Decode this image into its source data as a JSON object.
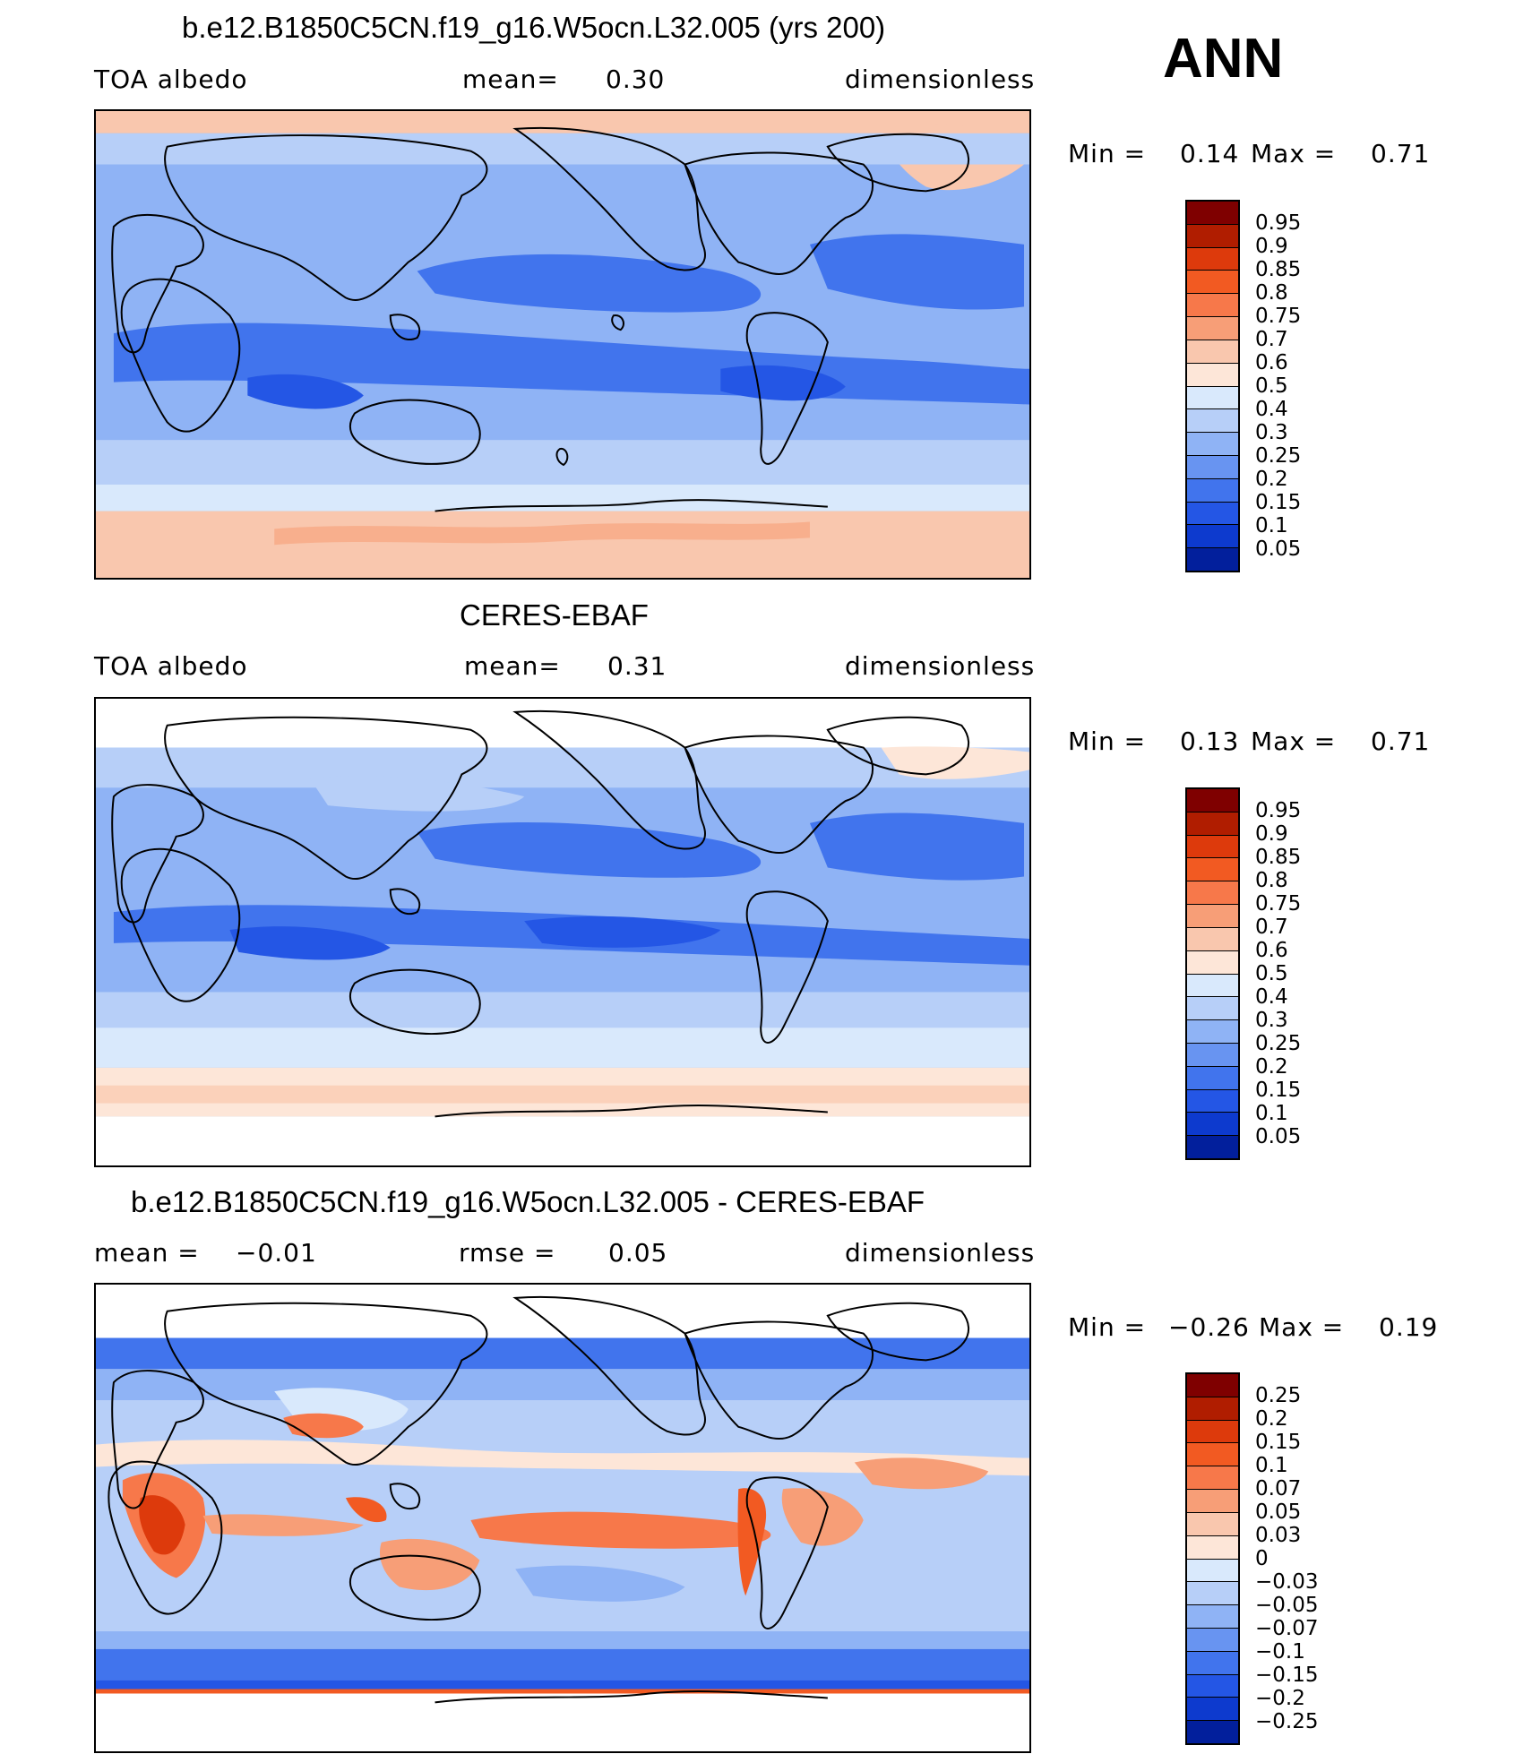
{
  "season": "ANN",
  "panels": [
    {
      "title": "b.e12.B1850C5CN.f19_g16.W5ocn.L32.005 (yrs 200)",
      "left_label": "TOA albedo",
      "center_label": "mean=",
      "center_value": "0.30",
      "right_label": "dimensionless",
      "min_label": "Min =",
      "min_value": "0.14",
      "max_label": "Max =",
      "max_value": "0.71",
      "levels": [
        "0.95",
        "0.9",
        "0.85",
        "0.8",
        "0.75",
        "0.7",
        "0.6",
        "0.5",
        "0.4",
        "0.3",
        "0.25",
        "0.2",
        "0.15",
        "0.1",
        "0.05"
      ],
      "colors": [
        "#7f0000",
        "#b01d00",
        "#dd3a0c",
        "#f25a22",
        "#f7784a",
        "#f79e77",
        "#f9c7ae",
        "#fde6d8",
        "#d9e9fc",
        "#b7cff8",
        "#8fb3f5",
        "#6894f1",
        "#4174ed",
        "#2456e5",
        "#0d3ace",
        "#021f9c"
      ]
    },
    {
      "title": "CERES-EBAF",
      "left_label": "TOA albedo",
      "center_label": "mean=",
      "center_value": "0.31",
      "right_label": "dimensionless",
      "min_label": "Min =",
      "min_value": "0.13",
      "max_label": "Max =",
      "max_value": "0.71",
      "levels": [
        "0.95",
        "0.9",
        "0.85",
        "0.8",
        "0.75",
        "0.7",
        "0.6",
        "0.5",
        "0.4",
        "0.3",
        "0.25",
        "0.2",
        "0.15",
        "0.1",
        "0.05"
      ],
      "colors": [
        "#7f0000",
        "#b01d00",
        "#dd3a0c",
        "#f25a22",
        "#f7784a",
        "#f79e77",
        "#f9c7ae",
        "#fde6d8",
        "#d9e9fc",
        "#b7cff8",
        "#8fb3f5",
        "#6894f1",
        "#4174ed",
        "#2456e5",
        "#0d3ace",
        "#021f9c"
      ]
    },
    {
      "title": "b.e12.B1850C5CN.f19_g16.W5ocn.L32.005 - CERES-EBAF",
      "left_label": "mean =",
      "left_value": "−0.01",
      "center_label": "rmse =",
      "center_value": "0.05",
      "right_label": "dimensionless",
      "min_label": "Min =",
      "min_value": "−0.26",
      "max_label": "Max =",
      "max_value": "0.19",
      "levels": [
        "0.25",
        "0.2",
        "0.15",
        "0.1",
        "0.07",
        "0.05",
        "0.03",
        "0",
        "−0.03",
        "−0.05",
        "−0.07",
        "−0.1",
        "−0.15",
        "−0.2",
        "−0.25"
      ],
      "colors": [
        "#7f0000",
        "#b01d00",
        "#dd3a0c",
        "#f25a22",
        "#f7784a",
        "#f79e77",
        "#f9c7ae",
        "#fde6d8",
        "#d9e9fc",
        "#b7cff8",
        "#8fb3f5",
        "#6894f1",
        "#4174ed",
        "#2456e5",
        "#0d3ace",
        "#021f9c"
      ]
    }
  ]
}
